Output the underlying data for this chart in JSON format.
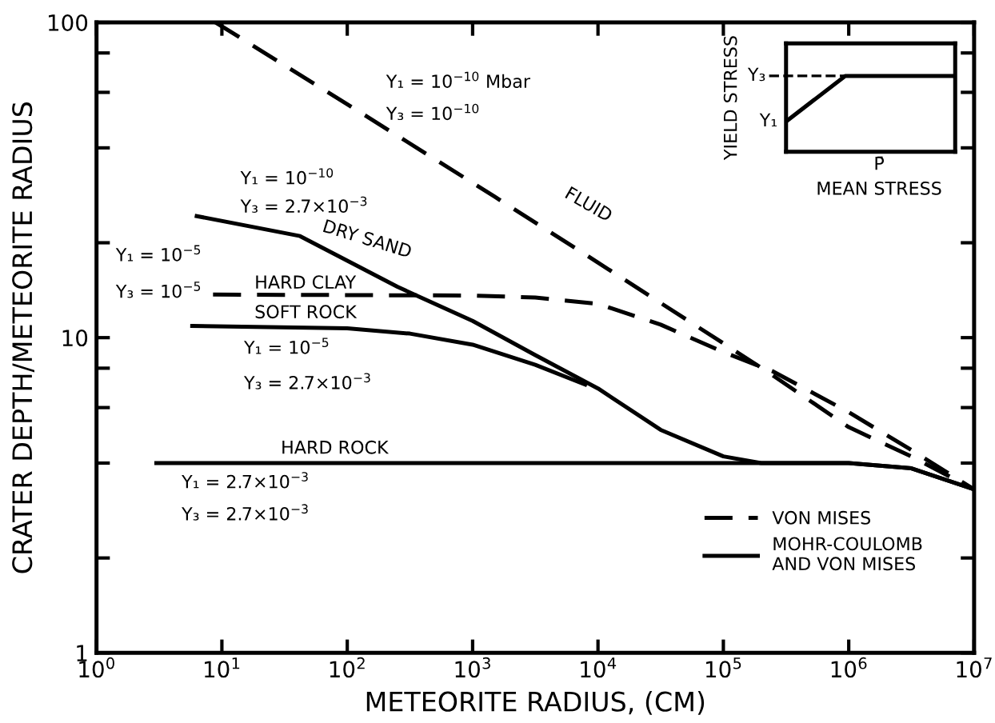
{
  "chart_data": {
    "type": "line",
    "xlabel": "METEORITE RADIUS, (CM)",
    "ylabel": "CRATER DEPTH/METEORITE RADIUS",
    "log": "xy",
    "xlim": [
      1,
      10000000
    ],
    "ylim": [
      1,
      100
    ],
    "xticks": [
      {
        "value": 1,
        "label": "10$^{0}$"
      },
      {
        "value": 10,
        "label": "10$^{1}$"
      },
      {
        "value": 100,
        "label": "10$^{2}$"
      },
      {
        "value": 1000,
        "label": "10$^{3}$"
      },
      {
        "value": 10000,
        "label": "10$^{4}$"
      },
      {
        "value": 100000,
        "label": "10$^{5}$"
      },
      {
        "value": 1000000,
        "label": "10$^{6}$"
      },
      {
        "value": 10000000,
        "label": "10$^{7}$"
      }
    ],
    "yticks": [
      1,
      {
        "value": 2,
        "label": null
      },
      {
        "value": 4,
        "label": null
      },
      {
        "value": 6,
        "label": null
      },
      {
        "value": 8,
        "label": null
      },
      10,
      {
        "value": 20,
        "label": null
      },
      {
        "value": 40,
        "label": null
      },
      {
        "value": 60,
        "label": null
      },
      {
        "value": 80,
        "label": null
      },
      100
    ],
    "grid": false,
    "legend": "bottom right",
    "marker": "none",
    "series": [
      {
        "name": "VON MISES",
        "color": "#000000",
        "line_style": "dashed",
        "x": [
          8.9,
          100,
          1500,
          10000,
          224000,
          1000000,
          3160000,
          10000000
        ],
        "values": [
          100,
          55,
          28,
          17.3,
          7.8,
          5.2,
          4.2,
          3.3
        ]
      },
      {
        "color": "#000000",
        "line_style": "dashed",
        "x": [
          8.5,
          1000,
          3160,
          10000,
          31600,
          100000,
          251000,
          1000000,
          3160000,
          10000000
        ],
        "values": [
          13.7,
          13.6,
          13.4,
          12.8,
          11,
          9,
          7.8,
          5.8,
          4.4,
          3.3
        ]
      },
      {
        "name": "MOHR-COULOMB\nAND VON MISES",
        "color": "#000000",
        "line_style": "solid",
        "x": [
          6.3,
          42,
          251,
          1000,
          3160,
          10000,
          31600,
          100000,
          200000,
          1000000,
          3160000,
          10000000
        ],
        "values": [
          24.3,
          21,
          14.5,
          11.3,
          8.8,
          6.9,
          5.1,
          4.2,
          4.0,
          4.0,
          3.85,
          3.3
        ]
      },
      {
        "color": "#000000",
        "line_style": "solid",
        "x": [
          5.8,
          100,
          316,
          1000,
          3160,
          7900
        ],
        "values": [
          10.9,
          10.7,
          10.3,
          9.5,
          8.2,
          7.1
        ]
      },
      {
        "color": "#000000",
        "line_style": "solid",
        "x": [
          3,
          100,
          10000,
          100000,
          1000000,
          3160000,
          10000000
        ],
        "values": [
          4.0,
          4.0,
          4.0,
          4.0,
          4.0,
          3.85,
          3.3
        ]
      }
    ],
    "annotations": [
      "FLUID",
      "DRY SAND",
      "HARD CLAY",
      "SOFT ROCK",
      "HARD ROCK",
      "Y₁ = 10$^{−10}$ Mbar",
      "Y₃ = 10$^{−10}$",
      "Y₁ = 10$^{−10}$",
      "Y₃ = 2.7×10$^{−3}$",
      "Y₁ = 10$^{−5}$",
      "Y₃ = 10$^{−5}$",
      "Y₁ = 10$^{−5}$",
      "Y₃ = 2.7×10$^{−3}$",
      "Y₁ = 2.7×10$^{−3}$",
      "Y₃ = 2.7×10$^{−3}$",
      "YIELD STRESS",
      "MEAN STRESS",
      "Y₃",
      "Y₁",
      "P̄"
    ]
  }
}
